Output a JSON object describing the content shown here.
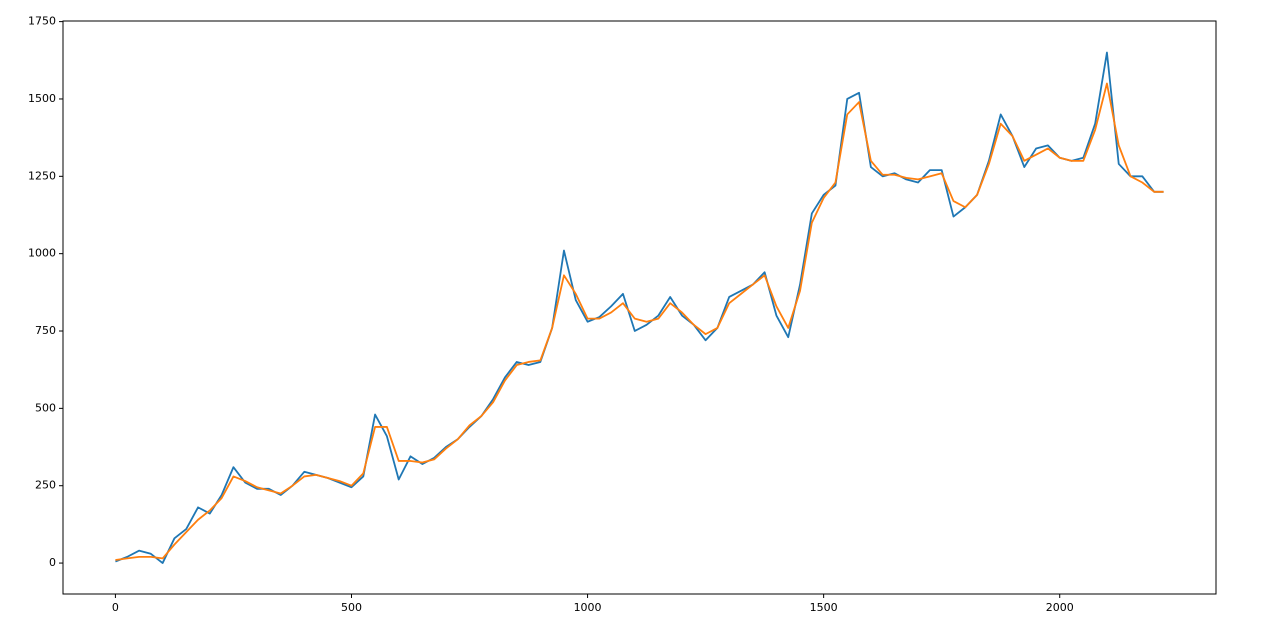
{
  "chart_data": {
    "type": "line",
    "x": [
      0,
      25,
      50,
      75,
      100,
      125,
      150,
      175,
      200,
      225,
      250,
      275,
      300,
      325,
      350,
      375,
      400,
      425,
      450,
      475,
      500,
      525,
      550,
      575,
      600,
      625,
      650,
      675,
      700,
      725,
      750,
      775,
      800,
      825,
      850,
      875,
      900,
      925,
      950,
      975,
      1000,
      1025,
      1050,
      1075,
      1100,
      1125,
      1150,
      1175,
      1200,
      1225,
      1250,
      1275,
      1300,
      1325,
      1350,
      1375,
      1400,
      1425,
      1450,
      1475,
      1500,
      1525,
      1550,
      1575,
      1600,
      1625,
      1650,
      1675,
      1700,
      1725,
      1750,
      1775,
      1800,
      1825,
      1850,
      1875,
      1900,
      1925,
      1950,
      1975,
      2000,
      2025,
      2050,
      2075,
      2100,
      2125,
      2150,
      2175,
      2200,
      2220
    ],
    "series": [
      {
        "color": "#1f77b4",
        "values": [
          5,
          20,
          40,
          30,
          0,
          80,
          110,
          180,
          160,
          220,
          310,
          260,
          240,
          240,
          220,
          250,
          295,
          285,
          275,
          260,
          245,
          280,
          480,
          410,
          270,
          345,
          320,
          340,
          375,
          400,
          440,
          475,
          530,
          600,
          650,
          640,
          650,
          760,
          1010,
          850,
          780,
          795,
          830,
          870,
          750,
          770,
          800,
          860,
          800,
          770,
          720,
          760,
          860,
          880,
          900,
          940,
          800,
          730,
          900,
          1130,
          1190,
          1220,
          1500,
          1520,
          1280,
          1250,
          1260,
          1240,
          1230,
          1270,
          1270,
          1120,
          1150,
          1190,
          1300,
          1450,
          1380,
          1280,
          1340,
          1350,
          1310,
          1300,
          1310,
          1420,
          1650,
          1290,
          1250,
          1250,
          1200,
          1200
        ]
      },
      {
        "color": "#ff7f0e",
        "values": [
          10,
          15,
          20,
          20,
          15,
          60,
          100,
          140,
          170,
          210,
          280,
          265,
          245,
          235,
          225,
          250,
          280,
          285,
          275,
          265,
          250,
          290,
          440,
          440,
          330,
          330,
          325,
          335,
          370,
          400,
          445,
          475,
          520,
          590,
          640,
          650,
          655,
          760,
          930,
          870,
          790,
          790,
          810,
          840,
          790,
          780,
          790,
          840,
          810,
          770,
          740,
          760,
          840,
          870,
          900,
          930,
          830,
          760,
          880,
          1100,
          1180,
          1230,
          1450,
          1490,
          1300,
          1255,
          1255,
          1245,
          1240,
          1250,
          1260,
          1170,
          1150,
          1190,
          1290,
          1420,
          1380,
          1300,
          1320,
          1340,
          1310,
          1300,
          1300,
          1400,
          1550,
          1350,
          1250,
          1230,
          1200,
          1200
        ]
      }
    ],
    "xlim": [
      -111,
      2331
    ],
    "ylim": [
      -100,
      1752
    ],
    "xticks": [
      0,
      500,
      1000,
      1500,
      2000
    ],
    "yticks": [
      0,
      250,
      500,
      750,
      1000,
      1250,
      1500,
      1750
    ]
  }
}
